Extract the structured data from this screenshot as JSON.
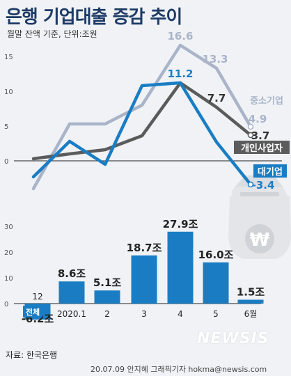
{
  "header": {
    "title": "은행 기업대출 증감 추이",
    "subtitle": "월말 잔액 기준, 단위:조원"
  },
  "footer": {
    "source": "자료: 한국은행",
    "credit": "20.07.09 안지혜 그래픽기자 hokma@newsis.com",
    "watermark": "NEWSIS"
  },
  "colors": {
    "large": "#1a7dc4",
    "sme": "#a9b4c9",
    "individual": "#5b5b5b",
    "bar": "#1a7dc4",
    "axis_text": "#555555"
  },
  "icons": {
    "money_bag": "money-bag-won-icon"
  },
  "chart_data": [
    {
      "type": "line",
      "ylim": [
        -6,
        16
      ],
      "y_ticks": [
        "15",
        "10",
        "5",
        "0"
      ],
      "x_points": 7,
      "series": [
        {
          "name": "중소기업",
          "values": [
            -4.0,
            5.3,
            5.3,
            8.0,
            16.6,
            13.3,
            4.9
          ]
        },
        {
          "name": "개인사업자",
          "values": [
            0.3,
            1.0,
            1.6,
            3.6,
            11.2,
            7.7,
            3.7
          ]
        },
        {
          "name": "대기업",
          "values": [
            -2.3,
            2.8,
            -0.5,
            10.8,
            11.2,
            2.7,
            -3.4
          ]
        }
      ],
      "data_labels": [
        {
          "series": 0,
          "index": 4,
          "text": "16.6"
        },
        {
          "series": 0,
          "index": 5,
          "text": "13.3"
        },
        {
          "series": 0,
          "index": 6,
          "text": "4.9"
        },
        {
          "series": 1,
          "index": 5,
          "text": "7.7"
        },
        {
          "series": 1,
          "index": 6,
          "text": "3.7"
        },
        {
          "series": 2,
          "index": 4,
          "text": "11.2"
        },
        {
          "series": 2,
          "index": 6,
          "text": "-3.4"
        }
      ],
      "legend": [
        "중소기업",
        "개인사업자",
        "대기업"
      ]
    },
    {
      "type": "bar",
      "series_name": "전체",
      "categories": [
        "12",
        "2020.1",
        "2",
        "3",
        "4",
        "5",
        "6월"
      ],
      "values": [
        -6.2,
        8.6,
        5.1,
        18.7,
        27.9,
        16.0,
        1.5
      ],
      "value_labels": [
        "-6.2조",
        "8.6조",
        "5.1조",
        "18.7조",
        "27.9조",
        "16.0조",
        "1.5조"
      ],
      "ylim": [
        -8,
        32
      ],
      "y_ticks": [
        "30",
        "20",
        "10",
        "0"
      ]
    }
  ]
}
